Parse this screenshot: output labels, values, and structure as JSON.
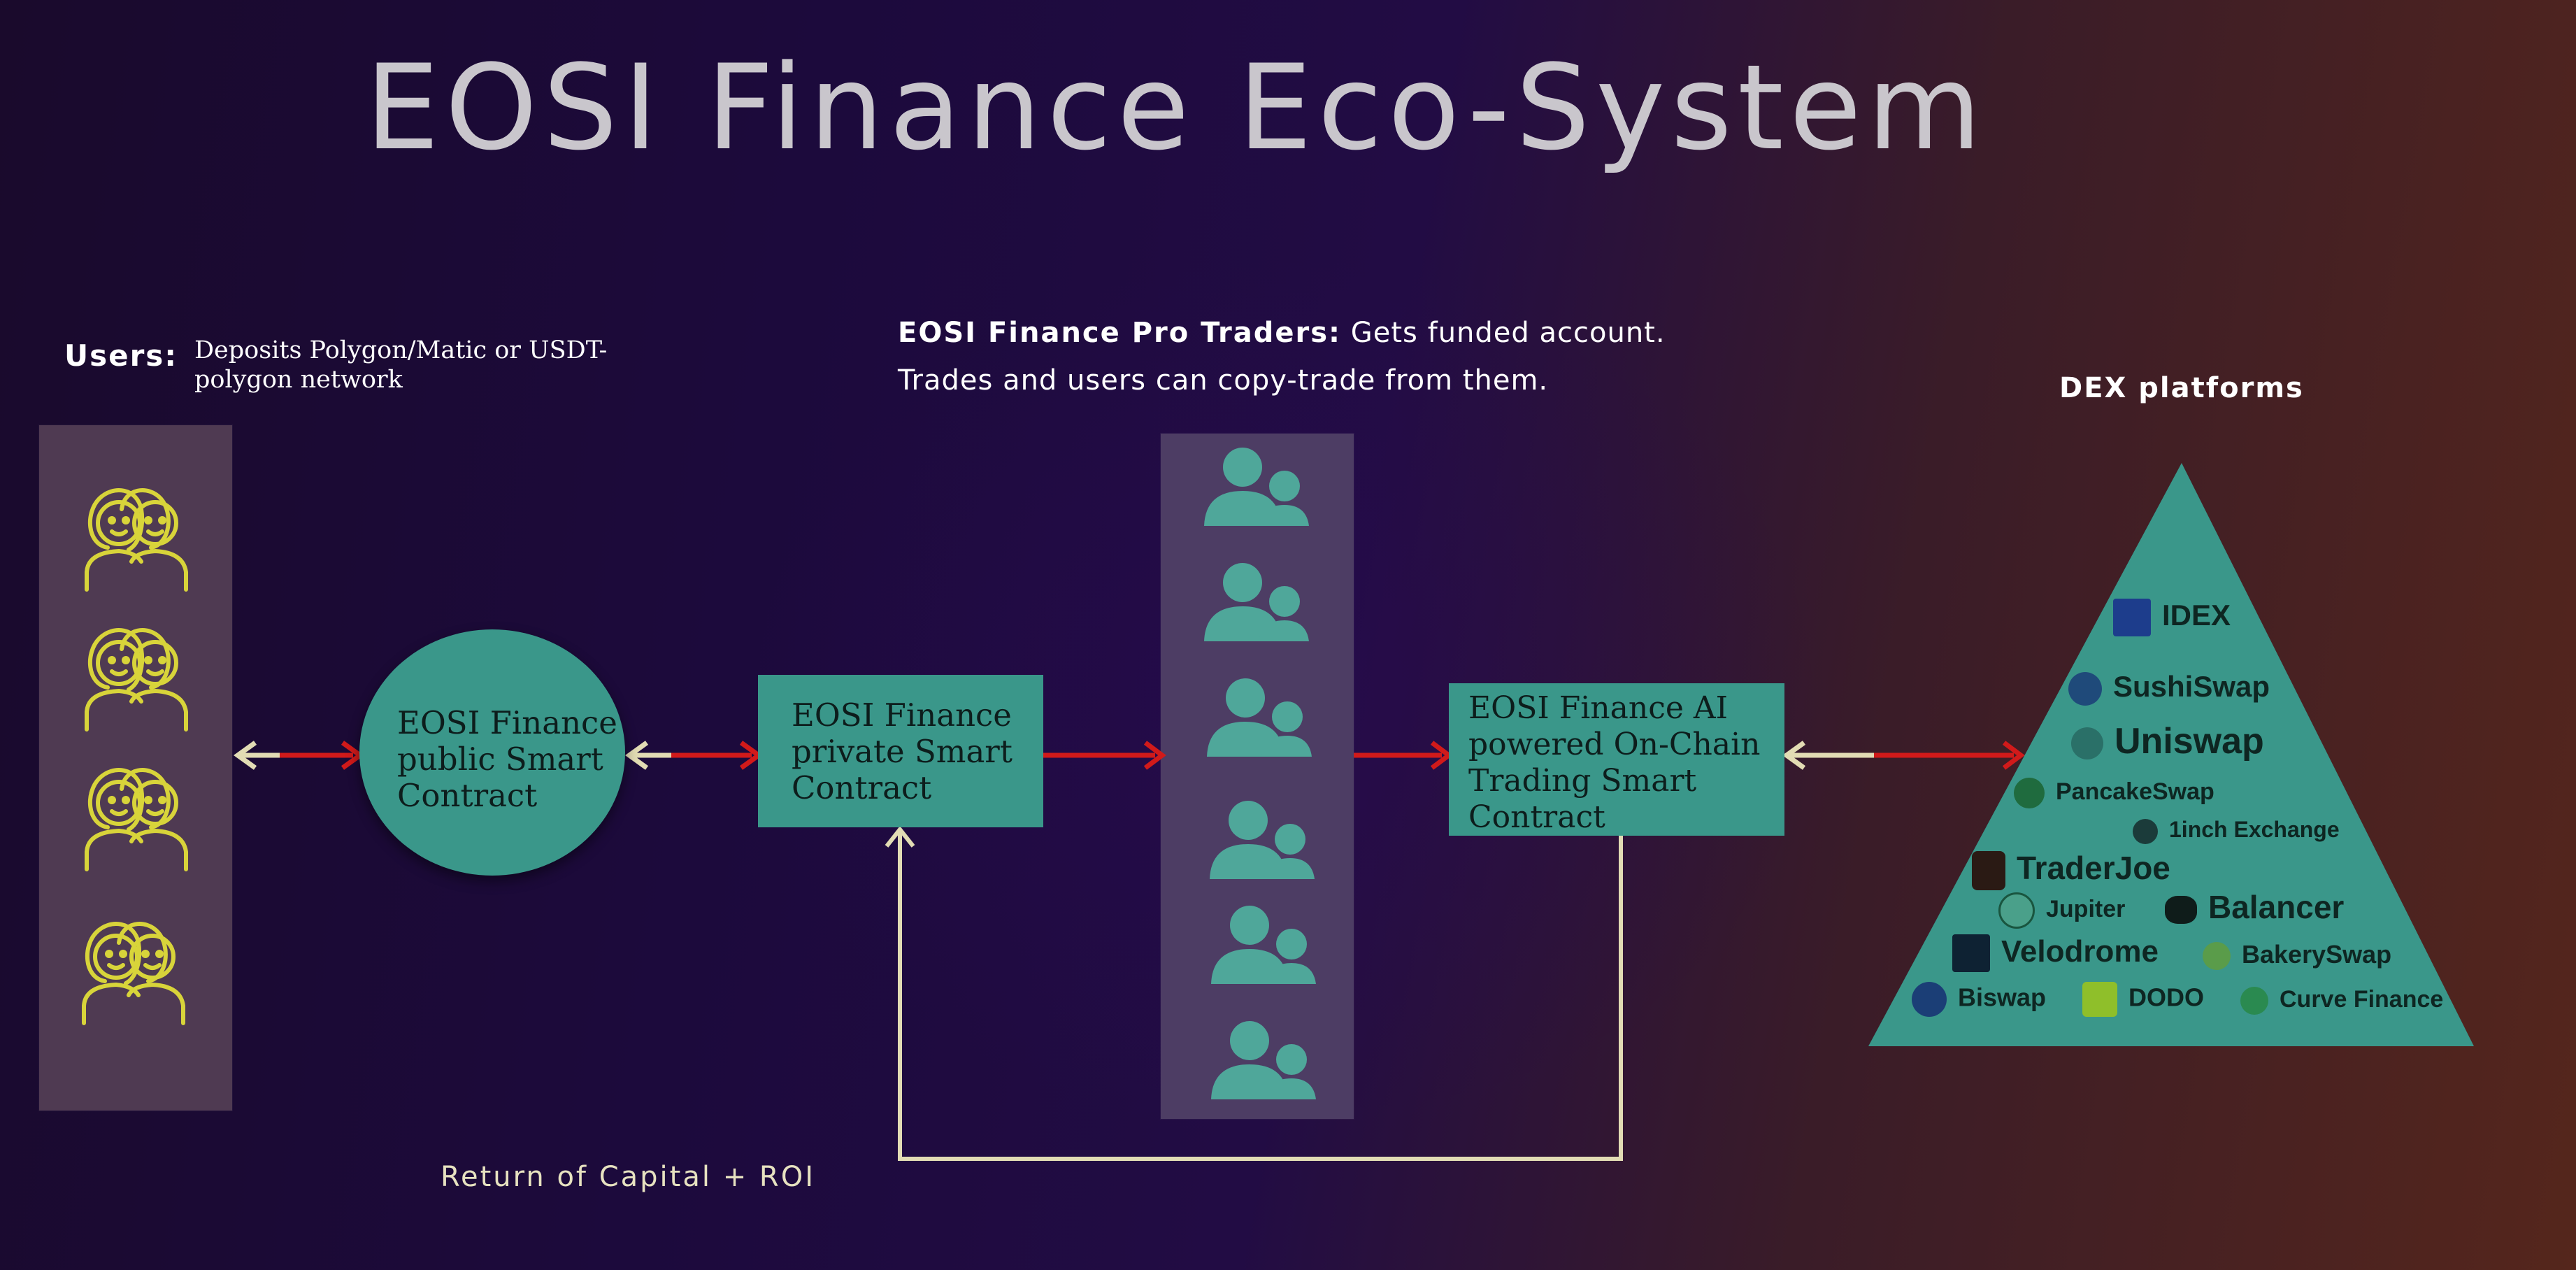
{
  "title": "EOSI Finance Eco-System",
  "users": {
    "label": "Users:",
    "description": "Deposits Polygon/Matic or USDT-polygon network"
  },
  "pro_traders": {
    "label": "EOSI Finance Pro Traders:",
    "line1": "Gets funded account.",
    "line2": "Trades and users can copy-trade from them."
  },
  "dex_label": "DEX platforms",
  "nodes": {
    "public": "EOSI Finance public Smart Contract",
    "private": "EOSI Finance private Smart Contract",
    "ai": "EOSI Finance AI powered On-Chain Trading Smart Contract"
  },
  "return_label": "Return of Capital + ROI",
  "dex_platforms": [
    "IDEX",
    "SushiSwap",
    "Uniswap",
    "PancakeSwap",
    "1inch Exchange",
    "TraderJoe",
    "Jupiter",
    "Balancer",
    "Velodrome",
    "BakerySwap",
    "Biswap",
    "DODO",
    "Curve Finance"
  ],
  "colors": {
    "node": "#3a978a",
    "arrow_red": "#d11a1a",
    "arrow_cream": "#e2dcb4",
    "user_icon": "#d8d43a",
    "trader_icon": "#4fa79a"
  }
}
